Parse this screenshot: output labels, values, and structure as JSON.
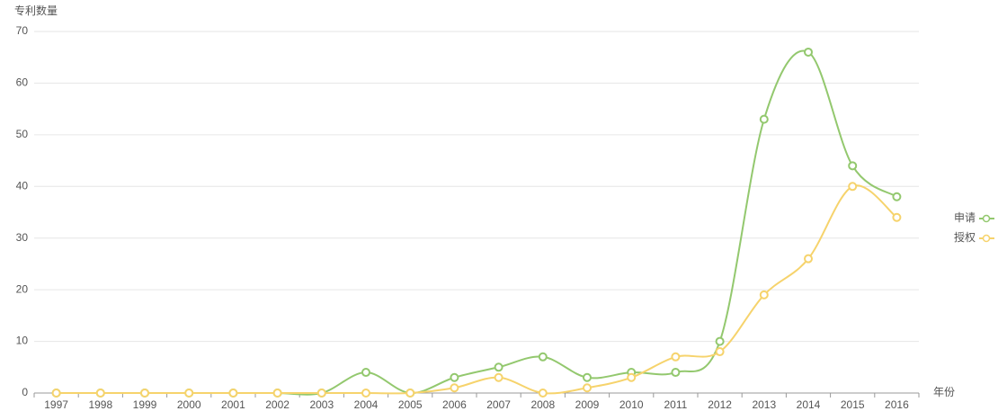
{
  "chart_data": {
    "type": "line",
    "y_label": "专利数量",
    "x_label": "年份",
    "categories": [
      "1997",
      "1998",
      "1999",
      "2000",
      "2001",
      "2002",
      "2003",
      "2004",
      "2005",
      "2006",
      "2007",
      "2008",
      "2009",
      "2010",
      "2011",
      "2012",
      "2013",
      "2014",
      "2015",
      "2016"
    ],
    "series": [
      {
        "name": "申请",
        "color": "#93c86e",
        "values": [
          0,
          0,
          0,
          0,
          0,
          0,
          0,
          4,
          0,
          3,
          5,
          7,
          3,
          4,
          4,
          10,
          53,
          66,
          44,
          38
        ]
      },
      {
        "name": "授权",
        "color": "#f6d36c",
        "values": [
          0,
          0,
          0,
          0,
          0,
          0,
          0,
          0,
          0,
          1,
          3,
          0,
          1,
          3,
          7,
          8,
          19,
          26,
          40,
          34
        ]
      }
    ],
    "ylim": [
      0,
      70
    ],
    "yticks": [
      0,
      10,
      20,
      30,
      40,
      50,
      60,
      70
    ],
    "grid": true,
    "smooth": true,
    "legend": "right"
  }
}
